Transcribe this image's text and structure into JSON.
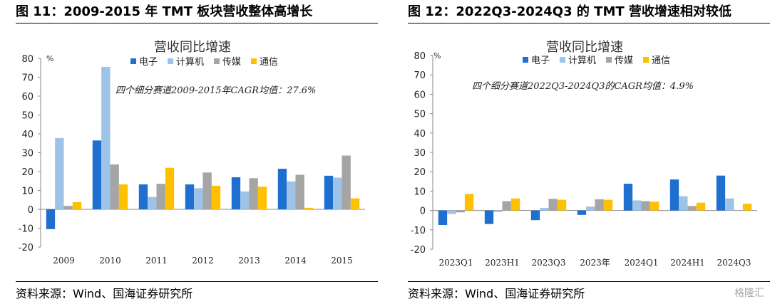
{
  "left": {
    "figure_title": "图 11：2009-2015 年 TMT 板块营收整体高增长",
    "source": "资料来源：Wind、国海证券研究所"
  },
  "right": {
    "figure_title": "图 12：2022Q3-2024Q3 的 TMT 营收增速相对较低",
    "source": "资料来源：Wind、国海证券研究所"
  },
  "watermark": "格隆汇",
  "chart_data": [
    {
      "type": "bar",
      "title": "营收同比增速",
      "ylabel": "%",
      "annotation": "四个细分赛道2009-2015年CAGR均值：27.6%",
      "categories": [
        "2009",
        "2010",
        "2011",
        "2012",
        "2013",
        "2014",
        "2015"
      ],
      "ylim": [
        -20,
        80
      ],
      "yticks": [
        -20,
        -10,
        0,
        10,
        20,
        30,
        40,
        50,
        60,
        70,
        80
      ],
      "legend_position": "top",
      "grid": false,
      "series": [
        {
          "name": "电子",
          "color": "#1f6fd0",
          "values": [
            -10.5,
            36.5,
            13.2,
            13.2,
            17.0,
            21.5,
            17.8
          ]
        },
        {
          "name": "计算机",
          "color": "#9dc3e6",
          "values": [
            37.8,
            75.5,
            6.5,
            11.2,
            9.5,
            14.8,
            16.8
          ]
        },
        {
          "name": "传媒",
          "color": "#a5a5a5",
          "values": [
            1.8,
            23.8,
            13.5,
            19.5,
            16.5,
            18.3,
            28.5
          ]
        },
        {
          "name": "通信",
          "color": "#ffc000",
          "values": [
            3.8,
            13.2,
            22.0,
            12.5,
            12.0,
            0.8,
            5.8
          ]
        }
      ]
    },
    {
      "type": "bar",
      "title": "营收同比增速",
      "ylabel": "%",
      "annotation": "四个细分赛道2022Q3-2024Q3的CAGR均值：4.9%",
      "categories": [
        "2023Q1",
        "2023H1",
        "2023Q3",
        "2023年",
        "2024Q1",
        "2024H1",
        "2024Q3"
      ],
      "ylim": [
        -20,
        80
      ],
      "yticks": [
        -20,
        -10,
        0,
        10,
        20,
        30,
        40,
        50,
        60,
        70,
        80
      ],
      "legend_position": "top",
      "grid": false,
      "series": [
        {
          "name": "电子",
          "color": "#1f6fd0",
          "values": [
            -7.5,
            -7.0,
            -5.0,
            -2.3,
            13.8,
            16.0,
            18.0
          ]
        },
        {
          "name": "计算机",
          "color": "#9dc3e6",
          "values": [
            -1.8,
            -0.8,
            1.3,
            2.0,
            5.2,
            7.3,
            6.2
          ]
        },
        {
          "name": "传媒",
          "color": "#a5a5a5",
          "values": [
            -1.0,
            4.8,
            6.0,
            5.8,
            4.8,
            2.3,
            0.2
          ]
        },
        {
          "name": "通信",
          "color": "#ffc000",
          "values": [
            8.5,
            6.2,
            5.5,
            5.5,
            4.5,
            4.0,
            3.5
          ]
        }
      ]
    }
  ]
}
